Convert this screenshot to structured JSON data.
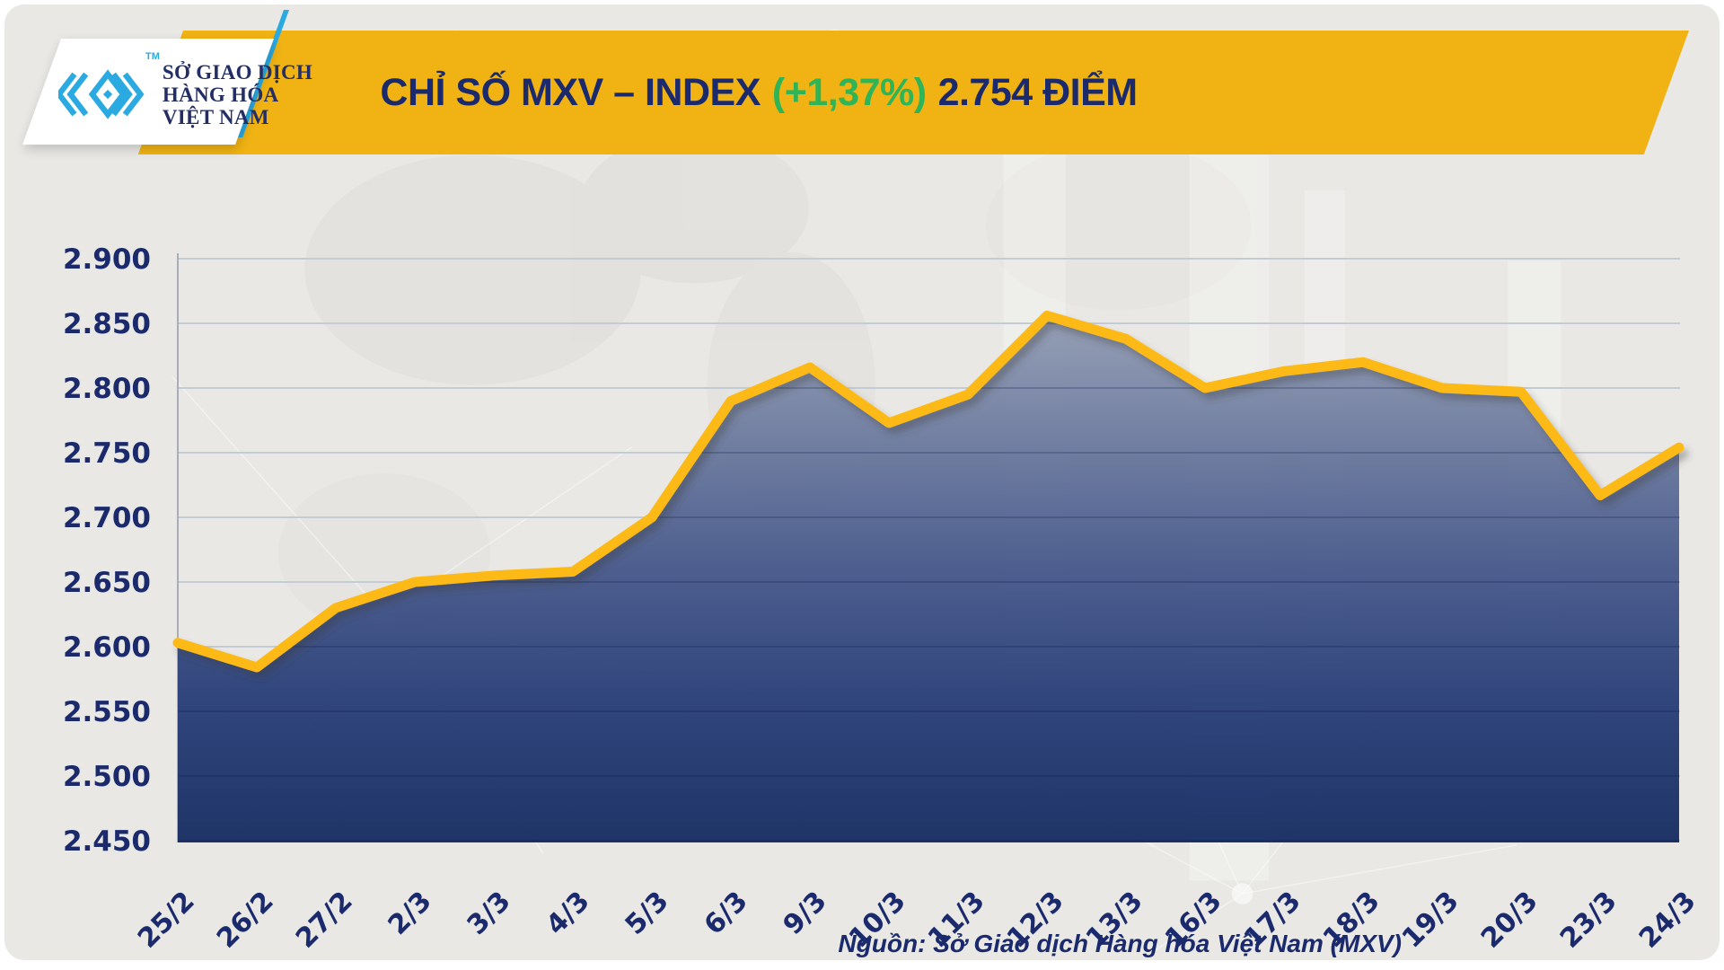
{
  "header": {
    "logo": {
      "line1": "SỞ GIAO DỊCH",
      "line2": "HÀNG HÓA",
      "line3": "VIỆT NAM",
      "tm": "TM"
    },
    "title": {
      "prefix": "CHỈ SỐ MXV – INDEX",
      "change": "(+1,37%)",
      "suffix": "2.754 ĐIỂM"
    }
  },
  "footer": {
    "source": "Nguồn: Sở Giao dịch Hàng hóa Việt Nam (MXV)"
  },
  "colors": {
    "banner_yellow": "#F0B313",
    "line_yellow": "#FDBA12",
    "navy_text": "#1A2A6C",
    "green_change": "#2FB457",
    "logo_cyan": "#2BAAE1",
    "gridline": "#c3cbd7",
    "fill_top": "#939DB4",
    "fill_bottom": "#132A5F",
    "background": "#e9e8e5"
  },
  "chart_data": {
    "type": "area",
    "title": "CHỈ SỐ MXV – INDEX (+1,37%) 2.754 ĐIỂM",
    "series_name": "MXV-Index",
    "categories": [
      "25/2",
      "26/2",
      "27/2",
      "2/3",
      "3/3",
      "4/3",
      "5/3",
      "6/3",
      "9/3",
      "10/3",
      "11/3",
      "12/3",
      "13/3",
      "16/3",
      "17/3",
      "18/3",
      "19/3",
      "20/3",
      "23/3",
      "24/3"
    ],
    "values": [
      2.603,
      2.584,
      2.63,
      2.65,
      2.655,
      2.658,
      2.7,
      2.79,
      2.816,
      2.773,
      2.795,
      2.856,
      2.838,
      2.8,
      2.813,
      2.82,
      2.8,
      2.797,
      2.717,
      2.754
    ],
    "last_value": 2.754,
    "change_percent": "+1,37%",
    "xlabel": "",
    "ylabel": "",
    "ylim": [
      2.45,
      2.9
    ],
    "yticks": [
      2.45,
      2.5,
      2.55,
      2.6,
      2.65,
      2.7,
      2.75,
      2.8,
      2.85,
      2.9
    ],
    "ytick_labels": [
      "2.450",
      "2.500",
      "2.550",
      "2.600",
      "2.650",
      "2.700",
      "2.750",
      "2.800",
      "2.850",
      "2.900"
    ],
    "grid": "horizontal",
    "legend": "none",
    "x_label_rotation": -45,
    "source": "Nguồn: Sở Giao dịch Hàng hóa Việt Nam (MXV)"
  }
}
